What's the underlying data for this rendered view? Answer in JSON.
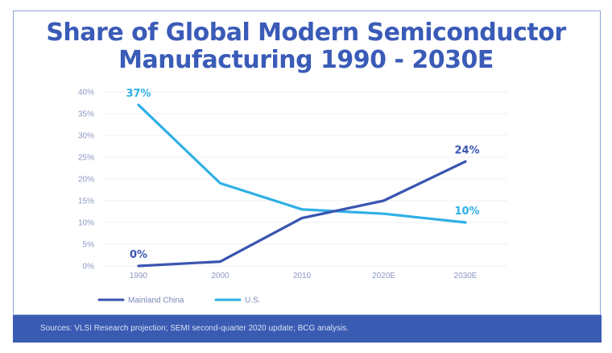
{
  "chart_data": {
    "type": "line",
    "title": "Share of Global Modern Semiconductor Manufacturing 1990 - 2030E",
    "title_lines": [
      "Share of Global Modern Semiconductor",
      "Manufacturing 1990 - 2030E"
    ],
    "xlabel": "",
    "ylabel": "",
    "categories": [
      "1990",
      "2000",
      "2010",
      "2020E",
      "2030E"
    ],
    "y_ticks": [
      "0%",
      "5%",
      "10%",
      "15%",
      "20%",
      "25%",
      "30%",
      "35%",
      "40%"
    ],
    "ylim": [
      0,
      40
    ],
    "grid": true,
    "legend_position": "bottom-left",
    "series": [
      {
        "name": "Mainland China",
        "color": "#3a55b0",
        "values": [
          0,
          1,
          11,
          15,
          24
        ],
        "labels": [
          {
            "index": 0,
            "text": "0%"
          },
          {
            "index": 4,
            "text": "24%"
          }
        ]
      },
      {
        "name": "U.S.",
        "color": "#2fb0e6",
        "values": [
          37,
          19,
          13,
          12,
          10
        ],
        "labels": [
          {
            "index": 0,
            "text": "37%"
          },
          {
            "index": 4,
            "text": "10%"
          }
        ]
      }
    ]
  },
  "footer": {
    "sources": "Sources: VLSI Research projection; SEMI second-quarter 2020 update; BCG analysis."
  },
  "colors": {
    "title": "#3a5bb7",
    "footer_bg": "#3a5bb2"
  }
}
